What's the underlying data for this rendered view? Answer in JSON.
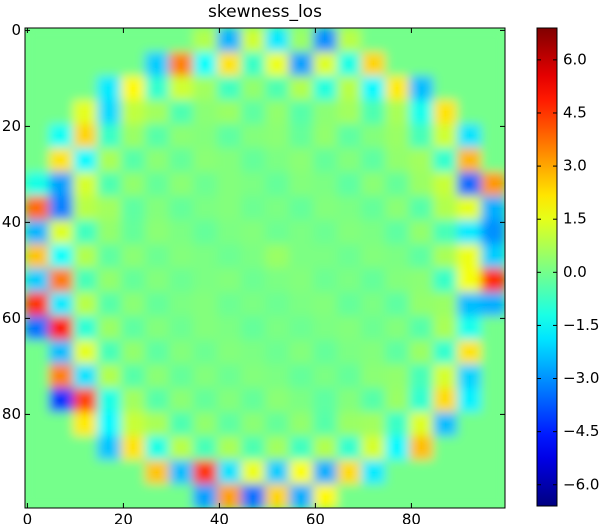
{
  "chart_data": {
    "type": "heatmap",
    "title": "skewness_los",
    "colormap": "jet",
    "xlim": [
      -0.5,
      99.5
    ],
    "ylim": [
      99.5,
      -0.5
    ],
    "xticks": [
      0,
      20,
      40,
      60,
      80
    ],
    "yticks": [
      0,
      20,
      40,
      60,
      80
    ],
    "clim": [
      -6.6,
      6.9
    ],
    "cticks": [
      {
        "value": -6,
        "label": "−6.0"
      },
      {
        "value": -4.5,
        "label": "−4.5"
      },
      {
        "value": -3,
        "label": "−3.0"
      },
      {
        "value": -1.5,
        "label": "−1.5"
      },
      {
        "value": 0,
        "label": "0.0"
      },
      {
        "value": 1.5,
        "label": "1.5"
      },
      {
        "value": 3,
        "label": "3.0"
      },
      {
        "value": 4.5,
        "label": "4.5"
      },
      {
        "value": 6,
        "label": "6.0"
      }
    ],
    "z": [
      [
        0,
        0,
        0,
        0,
        0,
        0,
        0,
        0.8,
        -2.5,
        1.2,
        -1.8,
        0.5,
        -3,
        0.9,
        0,
        0,
        0,
        0,
        0,
        0
      ],
      [
        0,
        0,
        0,
        0,
        0,
        -2.2,
        3.5,
        -1.5,
        2.2,
        -0.8,
        1.6,
        -2.8,
        1.4,
        -1.2,
        2.4,
        0,
        0,
        0,
        0,
        0
      ],
      [
        0,
        0,
        0,
        -1.8,
        1.9,
        -0.9,
        1.2,
        0.6,
        -0.7,
        0.4,
        -0.5,
        0.8,
        -1.1,
        0.9,
        -1.6,
        2.1,
        -2.4,
        0,
        0,
        0
      ],
      [
        0,
        0,
        1.5,
        -2,
        1,
        0.6,
        -0.5,
        0.3,
        0.5,
        -0.3,
        0.4,
        -0.4,
        0.3,
        0.6,
        -0.5,
        0.7,
        -1.3,
        2.2,
        0,
        0
      ],
      [
        0,
        -1.4,
        2.4,
        -0.8,
        0.5,
        -0.4,
        0.3,
        0.2,
        -0.3,
        0.2,
        0.3,
        -0.2,
        0.4,
        -0.3,
        0.2,
        0.5,
        -0.6,
        1.2,
        -1.9,
        0
      ],
      [
        0,
        2.2,
        -1.6,
        0.7,
        -0.4,
        0.3,
        -0.2,
        0.3,
        0.2,
        -0.2,
        0.1,
        0.3,
        -0.2,
        0.2,
        -0.3,
        0.4,
        0.6,
        -0.9,
        2.8,
        0
      ],
      [
        -1.2,
        -2.8,
        1.3,
        -0.5,
        0.4,
        -0.2,
        0.3,
        -0.1,
        0.2,
        0.1,
        -0.2,
        0.2,
        0.1,
        -0.3,
        0.3,
        -0.2,
        0.5,
        1.1,
        -3.5,
        3.2
      ],
      [
        3.8,
        -3.2,
        0.9,
        0.6,
        -0.3,
        0.2,
        -0.2,
        0.1,
        0.2,
        -0.1,
        0.1,
        -0.2,
        0.2,
        0.1,
        -0.2,
        0.3,
        -0.4,
        0.8,
        1.5,
        -2.6
      ],
      [
        -2.5,
        1.4,
        -0.7,
        0.4,
        -0.2,
        0.3,
        0.1,
        -0.2,
        0.1,
        0.2,
        -0.1,
        0.1,
        -0.1,
        0.2,
        0.1,
        -0.3,
        0.4,
        -0.6,
        -1.8,
        -3
      ],
      [
        2.6,
        -1.5,
        0.8,
        -0.3,
        0.3,
        -0.1,
        0.2,
        0.1,
        -0.1,
        0.1,
        0.5,
        0.1,
        0.1,
        -0.1,
        0.2,
        0.1,
        -0.3,
        0.7,
        1.6,
        -2.2
      ],
      [
        -2.2,
        3.6,
        -0.6,
        0.4,
        -0.2,
        0.2,
        -0.1,
        0.1,
        0.2,
        -0.1,
        0.1,
        0.2,
        -0.1,
        0.1,
        -0.2,
        0.2,
        0.3,
        -0.8,
        1.7,
        4.6
      ],
      [
        4.5,
        -1.8,
        0.9,
        -0.4,
        0.3,
        -0.2,
        0.1,
        0.2,
        -0.1,
        0.1,
        -0.1,
        0.1,
        0.2,
        -0.2,
        0.1,
        -0.3,
        0.4,
        0.5,
        -2.4,
        -2.6
      ],
      [
        -3.4,
        4.8,
        -1,
        0.5,
        -0.3,
        0.2,
        -0.1,
        0.2,
        0.1,
        -0.2,
        0.1,
        -0.1,
        0.1,
        0.2,
        -0.1,
        0.2,
        -0.4,
        0.7,
        -1.3,
        0
      ],
      [
        0,
        -2.4,
        1.5,
        -0.6,
        0.4,
        -0.3,
        0.2,
        -0.1,
        0.2,
        0.1,
        -0.1,
        0.2,
        -0.2,
        0.1,
        0.2,
        -0.3,
        0.5,
        -0.9,
        2.2,
        0
      ],
      [
        0,
        3.5,
        -1.9,
        0.8,
        -0.4,
        0.3,
        -0.2,
        0.2,
        -0.1,
        0.2,
        0.1,
        -0.2,
        0.1,
        -0.2,
        0.3,
        0.4,
        -0.6,
        1.3,
        -2.1,
        0
      ],
      [
        0,
        -4.2,
        4.3,
        -1.2,
        0.6,
        -0.4,
        0.3,
        -0.2,
        0.2,
        -0.2,
        0.3,
        0.1,
        -0.3,
        0.2,
        -0.4,
        0.5,
        -0.9,
        2.3,
        -1.7,
        0
      ],
      [
        0,
        0,
        2.1,
        -1.6,
        1.1,
        0.7,
        -0.5,
        0.4,
        -0.3,
        0.3,
        -0.2,
        0.4,
        -0.4,
        0.5,
        0.6,
        -0.8,
        1.4,
        -2.4,
        0,
        0
      ],
      [
        0,
        0,
        0,
        -2.3,
        2.2,
        -1.2,
        0.9,
        -0.6,
        0.7,
        -0.5,
        0.6,
        -0.7,
        0.8,
        -0.9,
        1.3,
        -1.6,
        2.7,
        0,
        0,
        0
      ],
      [
        0,
        0,
        0,
        0,
        0,
        2.6,
        -2.4,
        4.5,
        -1.9,
        1.6,
        -2.2,
        1.8,
        -2.6,
        2.3,
        -1.8,
        0,
        0,
        0,
        0,
        0
      ],
      [
        0,
        0,
        0,
        0,
        0,
        0,
        0,
        -2.8,
        3.1,
        -3.4,
        2.4,
        -2.6,
        1.9,
        0,
        0,
        0,
        0,
        0,
        0,
        0
      ]
    ]
  }
}
